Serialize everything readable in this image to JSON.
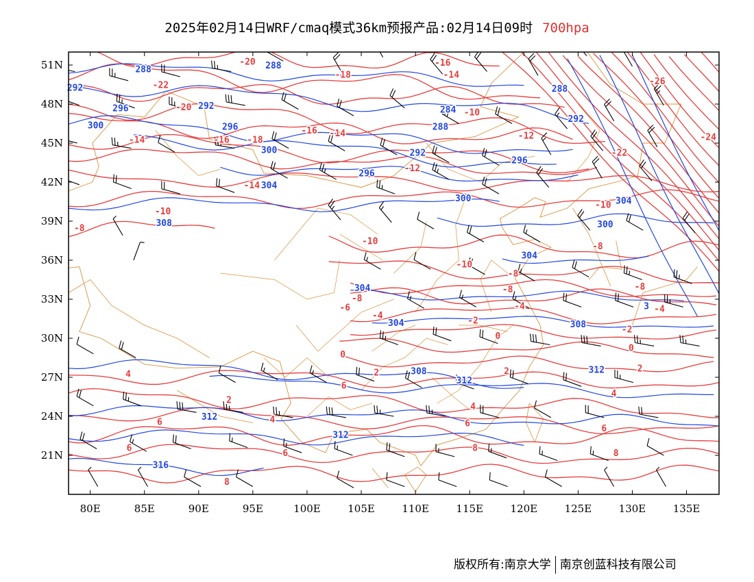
{
  "title": {
    "text": "2025年02月14日WRF/cmaq模式36km预报产品:02月14日09时",
    "level": "700hpa",
    "level_color": "#e03030"
  },
  "footer": {
    "left": "版权所有:南京大学",
    "right": "南京创蓝科技有限公司"
  },
  "colors": {
    "temperature": "#e63c3c",
    "theta": "#2046e0",
    "border": "#d8913a",
    "barb": "#000000"
  },
  "map": {
    "lon_range": [
      78,
      138
    ],
    "lat_range": [
      18,
      52
    ],
    "x_ticks": [
      "80E",
      "85E",
      "90E",
      "95E",
      "100E",
      "105E",
      "110E",
      "115E",
      "120E",
      "125E",
      "130E",
      "135E"
    ],
    "y_ticks": [
      "51N",
      "48N",
      "45N",
      "42N",
      "39N",
      "36N",
      "33N",
      "30N",
      "27N",
      "24N",
      "21N"
    ],
    "temperature_labels": [
      {
        "t": "-20",
        "lon": 94.5,
        "lat": 51.3
      },
      {
        "t": "-18",
        "lon": 103.3,
        "lat": 50.3
      },
      {
        "t": "-16",
        "lon": 112.5,
        "lat": 51.2
      },
      {
        "t": "-14",
        "lon": 113.3,
        "lat": 50.3
      },
      {
        "t": "-22",
        "lon": 86.5,
        "lat": 49.5
      },
      {
        "t": "-20",
        "lon": 88.6,
        "lat": 47.8
      },
      {
        "t": "-26",
        "lon": 132.3,
        "lat": 49.8
      },
      {
        "t": "-24",
        "lon": 137,
        "lat": 45.5
      },
      {
        "t": "-22",
        "lon": 128.8,
        "lat": 44.3
      },
      {
        "t": "-16",
        "lon": 100.2,
        "lat": 46
      },
      {
        "t": "-14",
        "lon": 102.8,
        "lat": 45.8
      },
      {
        "t": "-18",
        "lon": 95.2,
        "lat": 45.3
      },
      {
        "t": "-16",
        "lon": 92.1,
        "lat": 45.3
      },
      {
        "t": "-14",
        "lon": 84.3,
        "lat": 45.3
      },
      {
        "t": "-10",
        "lon": 115.2,
        "lat": 47.4
      },
      {
        "t": "-12",
        "lon": 120.2,
        "lat": 45.6
      },
      {
        "t": "-12",
        "lon": 109.7,
        "lat": 43.1
      },
      {
        "t": "-14",
        "lon": 94.9,
        "lat": 41.8
      },
      {
        "t": "-10",
        "lon": 86.7,
        "lat": 39.8
      },
      {
        "t": "-10",
        "lon": 127.3,
        "lat": 40.3
      },
      {
        "t": "-8",
        "lon": 79,
        "lat": 38.5
      },
      {
        "t": "-10",
        "lon": 105.8,
        "lat": 37.5
      },
      {
        "t": "-10",
        "lon": 114.5,
        "lat": 35.7
      },
      {
        "t": "-8",
        "lon": 126.8,
        "lat": 37.1
      },
      {
        "t": "-8",
        "lon": 119,
        "lat": 35
      },
      {
        "t": "-8",
        "lon": 130.7,
        "lat": 34
      },
      {
        "t": "-8",
        "lon": 118.5,
        "lat": 33.8
      },
      {
        "t": "-8",
        "lon": 104.6,
        "lat": 33.1
      },
      {
        "t": "-6",
        "lon": 103.5,
        "lat": 32.4
      },
      {
        "t": "-4",
        "lon": 119.6,
        "lat": 32.5
      },
      {
        "t": "-4",
        "lon": 106.5,
        "lat": 31.8
      },
      {
        "t": "-2",
        "lon": 115.3,
        "lat": 31.4
      },
      {
        "t": "-4",
        "lon": 132.5,
        "lat": 32.3
      },
      {
        "t": "-2",
        "lon": 129.5,
        "lat": 30.7
      },
      {
        "t": "0",
        "lon": 117.6,
        "lat": 30.2
      },
      {
        "t": "0",
        "lon": 129.9,
        "lat": 29.3
      },
      {
        "t": "0",
        "lon": 103.3,
        "lat": 28.8
      },
      {
        "t": "2",
        "lon": 106.4,
        "lat": 27.4
      },
      {
        "t": "2",
        "lon": 118.4,
        "lat": 27.5
      },
      {
        "t": "2",
        "lon": 130.7,
        "lat": 27.7
      },
      {
        "t": "4",
        "lon": 83.5,
        "lat": 27.3
      },
      {
        "t": "6",
        "lon": 103.4,
        "lat": 26.4
      },
      {
        "t": "2",
        "lon": 92.8,
        "lat": 25.3
      },
      {
        "t": "4",
        "lon": 96.8,
        "lat": 23.8
      },
      {
        "t": "6",
        "lon": 86.4,
        "lat": 23.6
      },
      {
        "t": "4",
        "lon": 115.3,
        "lat": 24.8
      },
      {
        "t": "6",
        "lon": 114.8,
        "lat": 23.5
      },
      {
        "t": "4",
        "lon": 128.3,
        "lat": 25.8
      },
      {
        "t": "6",
        "lon": 127.4,
        "lat": 23.1
      },
      {
        "t": "6",
        "lon": 83.6,
        "lat": 21.6
      },
      {
        "t": "6",
        "lon": 98,
        "lat": 21.2
      },
      {
        "t": "8",
        "lon": 115.5,
        "lat": 21.6
      },
      {
        "t": "8",
        "lon": 128.5,
        "lat": 21.2
      },
      {
        "t": "8",
        "lon": 92.6,
        "lat": 19
      }
    ],
    "theta_labels": [
      {
        "t": "288",
        "lon": 84.9,
        "lat": 50.7
      },
      {
        "t": "288",
        "lon": 96.9,
        "lat": 51
      },
      {
        "t": "292",
        "lon": 78.6,
        "lat": 49.3
      },
      {
        "t": "296",
        "lon": 82.8,
        "lat": 47.7
      },
      {
        "t": "292",
        "lon": 90.7,
        "lat": 47.9
      },
      {
        "t": "300",
        "lon": 80.5,
        "lat": 46.4
      },
      {
        "t": "296",
        "lon": 92.9,
        "lat": 46.3
      },
      {
        "t": "300",
        "lon": 96.5,
        "lat": 44.5
      },
      {
        "t": "284",
        "lon": 113,
        "lat": 47.6
      },
      {
        "t": "288",
        "lon": 123.3,
        "lat": 49.2
      },
      {
        "t": "288",
        "lon": 112.3,
        "lat": 46.3
      },
      {
        "t": "292",
        "lon": 124.8,
        "lat": 46.9
      },
      {
        "t": "292",
        "lon": 110.2,
        "lat": 44.3
      },
      {
        "t": "296",
        "lon": 105.5,
        "lat": 42.7
      },
      {
        "t": "296",
        "lon": 119.6,
        "lat": 43.7
      },
      {
        "t": "304",
        "lon": 96.5,
        "lat": 41.8
      },
      {
        "t": "300",
        "lon": 114.4,
        "lat": 40.8
      },
      {
        "t": "304",
        "lon": 129.2,
        "lat": 40.6
      },
      {
        "t": "308",
        "lon": 86.8,
        "lat": 38.9
      },
      {
        "t": "300",
        "lon": 127.5,
        "lat": 38.8
      },
      {
        "t": "304",
        "lon": 120.5,
        "lat": 36.4
      },
      {
        "t": "304",
        "lon": 105.1,
        "lat": 33.9
      },
      {
        "t": "304",
        "lon": 108.2,
        "lat": 31.2
      },
      {
        "t": "308",
        "lon": 125,
        "lat": 31.1
      },
      {
        "t": "3",
        "lon": 131.3,
        "lat": 32.5
      },
      {
        "t": "312",
        "lon": 126.7,
        "lat": 27.6
      },
      {
        "t": "308",
        "lon": 110.3,
        "lat": 27.5
      },
      {
        "t": "312",
        "lon": 114.5,
        "lat": 26.8
      },
      {
        "t": "312",
        "lon": 91,
        "lat": 24
      },
      {
        "t": "312",
        "lon": 103.1,
        "lat": 22.6
      },
      {
        "t": "316",
        "lon": 86.5,
        "lat": 20.3
      }
    ],
    "wind_barbs": [
      {
        "lon": 78.6,
        "lat": 50.5,
        "dir": 280,
        "spd": 30
      },
      {
        "lon": 83.5,
        "lat": 49.8,
        "dir": 285,
        "spd": 26
      },
      {
        "lon": 88.3,
        "lat": 50.1,
        "dir": 285,
        "spd": 24
      },
      {
        "lon": 93,
        "lat": 50.5,
        "dir": 280,
        "spd": 26
      },
      {
        "lon": 97.8,
        "lat": 51.3,
        "dir": 300,
        "spd": 18
      },
      {
        "lon": 103.3,
        "lat": 50.3,
        "dir": 330,
        "spd": 22
      },
      {
        "lon": 107,
        "lat": 51.6,
        "dir": 330,
        "spd": 10
      },
      {
        "lon": 112.5,
        "lat": 50.3,
        "dir": 320,
        "spd": 24
      },
      {
        "lon": 116.6,
        "lat": 50.5,
        "dir": 320,
        "spd": 24
      },
      {
        "lon": 121.3,
        "lat": 50.2,
        "dir": 330,
        "spd": 20
      },
      {
        "lon": 125.8,
        "lat": 51.7,
        "dir": 320,
        "spd": 12
      },
      {
        "lon": 130,
        "lat": 50.9,
        "dir": 330,
        "spd": 18
      },
      {
        "lon": 79,
        "lat": 47.9,
        "dir": 290,
        "spd": 24
      },
      {
        "lon": 84.1,
        "lat": 47.7,
        "dir": 290,
        "spd": 28
      },
      {
        "lon": 89,
        "lat": 47.6,
        "dir": 285,
        "spd": 26
      },
      {
        "lon": 94.3,
        "lat": 47.9,
        "dir": 280,
        "spd": 30
      },
      {
        "lon": 99.2,
        "lat": 47.6,
        "dir": 300,
        "spd": 24
      },
      {
        "lon": 104.3,
        "lat": 47.1,
        "dir": 300,
        "spd": 20
      },
      {
        "lon": 109,
        "lat": 47.7,
        "dir": 310,
        "spd": 24
      },
      {
        "lon": 114,
        "lat": 46.5,
        "dir": 300,
        "spd": 26
      },
      {
        "lon": 118.9,
        "lat": 46.5,
        "dir": 300,
        "spd": 24
      },
      {
        "lon": 124,
        "lat": 46.1,
        "dir": 320,
        "spd": 18
      },
      {
        "lon": 128.3,
        "lat": 46.7,
        "dir": 330,
        "spd": 22
      },
      {
        "lon": 132.9,
        "lat": 47.9,
        "dir": 330,
        "spd": 26
      },
      {
        "lon": 78.8,
        "lat": 45,
        "dir": 285,
        "spd": 24
      },
      {
        "lon": 83.8,
        "lat": 44.6,
        "dir": 280,
        "spd": 28
      },
      {
        "lon": 87.8,
        "lat": 44.3,
        "dir": 300,
        "spd": 10
      },
      {
        "lon": 93.3,
        "lat": 44.6,
        "dir": 280,
        "spd": 28
      },
      {
        "lon": 98.3,
        "lat": 44.6,
        "dir": 300,
        "spd": 22
      },
      {
        "lon": 103.5,
        "lat": 44.4,
        "dir": 300,
        "spd": 22
      },
      {
        "lon": 108.3,
        "lat": 44.1,
        "dir": 300,
        "spd": 20
      },
      {
        "lon": 113.1,
        "lat": 43.5,
        "dir": 300,
        "spd": 22
      },
      {
        "lon": 117.7,
        "lat": 43.3,
        "dir": 300,
        "spd": 20
      },
      {
        "lon": 122.5,
        "lat": 44.1,
        "dir": 330,
        "spd": 18
      },
      {
        "lon": 127.3,
        "lat": 44.4,
        "dir": 320,
        "spd": 20
      },
      {
        "lon": 132.3,
        "lat": 44.7,
        "dir": 330,
        "spd": 24
      },
      {
        "lon": 79,
        "lat": 41.8,
        "dir": 290,
        "spd": 22
      },
      {
        "lon": 83.8,
        "lat": 41.5,
        "dir": 290,
        "spd": 20
      },
      {
        "lon": 88.3,
        "lat": 41.1,
        "dir": 285,
        "spd": 24
      },
      {
        "lon": 93.3,
        "lat": 41.2,
        "dir": 290,
        "spd": 22
      },
      {
        "lon": 98.2,
        "lat": 42.3,
        "dir": 300,
        "spd": 24
      },
      {
        "lon": 102.7,
        "lat": 42.2,
        "dir": 300,
        "spd": 26
      },
      {
        "lon": 108.1,
        "lat": 41.1,
        "dir": 290,
        "spd": 26
      },
      {
        "lon": 113.1,
        "lat": 42.2,
        "dir": 300,
        "spd": 26
      },
      {
        "lon": 117.7,
        "lat": 41.1,
        "dir": 300,
        "spd": 20
      },
      {
        "lon": 122.3,
        "lat": 41.6,
        "dir": 320,
        "spd": 22
      },
      {
        "lon": 127.2,
        "lat": 42.3,
        "dir": 330,
        "spd": 20
      },
      {
        "lon": 131.8,
        "lat": 42.1,
        "dir": 320,
        "spd": 24
      },
      {
        "lon": 103.1,
        "lat": 39.1,
        "dir": 320,
        "spd": 26
      },
      {
        "lon": 107.8,
        "lat": 38.9,
        "dir": 320,
        "spd": 18
      },
      {
        "lon": 111.7,
        "lat": 38.4,
        "dir": 300,
        "spd": 10
      },
      {
        "lon": 116.3,
        "lat": 37.4,
        "dir": 300,
        "spd": 22
      },
      {
        "lon": 121.5,
        "lat": 37.4,
        "dir": 300,
        "spd": 18
      },
      {
        "lon": 126.1,
        "lat": 38.3,
        "dir": 320,
        "spd": 24
      },
      {
        "lon": 131,
        "lat": 38.3,
        "dir": 300,
        "spd": 22
      },
      {
        "lon": 135.8,
        "lat": 38.1,
        "dir": 320,
        "spd": 22
      },
      {
        "lon": 83,
        "lat": 37.9,
        "dir": 330,
        "spd": 8
      },
      {
        "lon": 84,
        "lat": 36,
        "dir": 20,
        "spd": 8
      },
      {
        "lon": 106.8,
        "lat": 35.3,
        "dir": 300,
        "spd": 16
      },
      {
        "lon": 111.4,
        "lat": 35.3,
        "dir": 300,
        "spd": 14
      },
      {
        "lon": 116.4,
        "lat": 34.9,
        "dir": 300,
        "spd": 20
      },
      {
        "lon": 121,
        "lat": 34.4,
        "dir": 300,
        "spd": 18
      },
      {
        "lon": 126,
        "lat": 34.7,
        "dir": 300,
        "spd": 20
      },
      {
        "lon": 130.9,
        "lat": 34.5,
        "dir": 290,
        "spd": 26
      },
      {
        "lon": 135.5,
        "lat": 34.2,
        "dir": 290,
        "spd": 26
      },
      {
        "lon": 110.8,
        "lat": 32.3,
        "dir": 300,
        "spd": 18
      },
      {
        "lon": 115.6,
        "lat": 32.4,
        "dir": 300,
        "spd": 18
      },
      {
        "lon": 120.5,
        "lat": 32.3,
        "dir": 300,
        "spd": 16
      },
      {
        "lon": 125.3,
        "lat": 32.4,
        "dir": 290,
        "spd": 22
      },
      {
        "lon": 130.1,
        "lat": 32.4,
        "dir": 290,
        "spd": 22
      },
      {
        "lon": 134.7,
        "lat": 32.4,
        "dir": 285,
        "spd": 26
      },
      {
        "lon": 108.4,
        "lat": 29.5,
        "dir": 290,
        "spd": 26
      },
      {
        "lon": 113.3,
        "lat": 29.8,
        "dir": 290,
        "spd": 22
      },
      {
        "lon": 117.6,
        "lat": 29.6,
        "dir": 290,
        "spd": 24
      },
      {
        "lon": 122.4,
        "lat": 29.5,
        "dir": 280,
        "spd": 30
      },
      {
        "lon": 127.1,
        "lat": 29.4,
        "dir": 280,
        "spd": 30
      },
      {
        "lon": 132,
        "lat": 29.4,
        "dir": 280,
        "spd": 28
      },
      {
        "lon": 136.2,
        "lat": 29.4,
        "dir": 280,
        "spd": 26
      },
      {
        "lon": 80.3,
        "lat": 28.8,
        "dir": 300,
        "spd": 14
      },
      {
        "lon": 84.2,
        "lat": 28.5,
        "dir": 300,
        "spd": 20
      },
      {
        "lon": 93.4,
        "lat": 26.6,
        "dir": 300,
        "spd": 14
      },
      {
        "lon": 97.3,
        "lat": 26.8,
        "dir": 300,
        "spd": 16
      },
      {
        "lon": 101.8,
        "lat": 26.6,
        "dir": 300,
        "spd": 18
      },
      {
        "lon": 106.2,
        "lat": 26.7,
        "dir": 290,
        "spd": 22
      },
      {
        "lon": 110.6,
        "lat": 26.2,
        "dir": 300,
        "spd": 20
      },
      {
        "lon": 115.4,
        "lat": 26.1,
        "dir": 290,
        "spd": 20
      },
      {
        "lon": 120.4,
        "lat": 26.5,
        "dir": 290,
        "spd": 22
      },
      {
        "lon": 125.3,
        "lat": 26.3,
        "dir": 290,
        "spd": 22
      },
      {
        "lon": 130.1,
        "lat": 26.6,
        "dir": 285,
        "spd": 26
      },
      {
        "lon": 80.3,
        "lat": 24.8,
        "dir": 300,
        "spd": 20
      },
      {
        "lon": 84.7,
        "lat": 24.8,
        "dir": 290,
        "spd": 26
      },
      {
        "lon": 89.8,
        "lat": 24.3,
        "dir": 280,
        "spd": 30
      },
      {
        "lon": 94.1,
        "lat": 24.3,
        "dir": 280,
        "spd": 28
      },
      {
        "lon": 98.7,
        "lat": 23.9,
        "dir": 280,
        "spd": 28
      },
      {
        "lon": 103.6,
        "lat": 23.9,
        "dir": 280,
        "spd": 30
      },
      {
        "lon": 108,
        "lat": 24,
        "dir": 280,
        "spd": 28
      },
      {
        "lon": 112.8,
        "lat": 24,
        "dir": 280,
        "spd": 26
      },
      {
        "lon": 117.7,
        "lat": 23.9,
        "dir": 285,
        "spd": 20
      },
      {
        "lon": 122.5,
        "lat": 23.9,
        "dir": 300,
        "spd": 14
      },
      {
        "lon": 127.4,
        "lat": 23.9,
        "dir": 285,
        "spd": 20
      },
      {
        "lon": 132.4,
        "lat": 23.9,
        "dir": 280,
        "spd": 24
      },
      {
        "lon": 80.6,
        "lat": 21.5,
        "dir": 300,
        "spd": 20
      },
      {
        "lon": 85.2,
        "lat": 21.3,
        "dir": 300,
        "spd": 18
      },
      {
        "lon": 89.3,
        "lat": 21.5,
        "dir": 290,
        "spd": 22
      },
      {
        "lon": 94.5,
        "lat": 21.6,
        "dir": 290,
        "spd": 18
      },
      {
        "lon": 99.5,
        "lat": 21.2,
        "dir": 290,
        "spd": 18
      },
      {
        "lon": 104.2,
        "lat": 21,
        "dir": 290,
        "spd": 18
      },
      {
        "lon": 109,
        "lat": 20.9,
        "dir": 290,
        "spd": 22
      },
      {
        "lon": 113.6,
        "lat": 20.9,
        "dir": 285,
        "spd": 18
      },
      {
        "lon": 118.4,
        "lat": 20.8,
        "dir": 290,
        "spd": 18
      },
      {
        "lon": 123.1,
        "lat": 20.6,
        "dir": 290,
        "spd": 16
      },
      {
        "lon": 127.8,
        "lat": 20.6,
        "dir": 290,
        "spd": 18
      },
      {
        "lon": 132.9,
        "lat": 21,
        "dir": 300,
        "spd": 12
      },
      {
        "lon": 80.7,
        "lat": 18.6,
        "dir": 330,
        "spd": 8
      },
      {
        "lon": 85.3,
        "lat": 18.6,
        "dir": 330,
        "spd": 8
      },
      {
        "lon": 90.2,
        "lat": 18.6,
        "dir": 300,
        "spd": 14
      },
      {
        "lon": 95,
        "lat": 18.6,
        "dir": 300,
        "spd": 14
      },
      {
        "lon": 104.3,
        "lat": 18.5,
        "dir": 300,
        "spd": 10
      },
      {
        "lon": 109,
        "lat": 18.6,
        "dir": 290,
        "spd": 14
      },
      {
        "lon": 113.8,
        "lat": 18.6,
        "dir": 290,
        "spd": 14
      },
      {
        "lon": 118.5,
        "lat": 18.6,
        "dir": 290,
        "spd": 14
      },
      {
        "lon": 123.5,
        "lat": 18.6,
        "dir": 300,
        "spd": 12
      },
      {
        "lon": 128.3,
        "lat": 18.6,
        "dir": 330,
        "spd": 8
      },
      {
        "lon": 133.1,
        "lat": 18.6,
        "dir": 330,
        "spd": 8
      }
    ]
  }
}
